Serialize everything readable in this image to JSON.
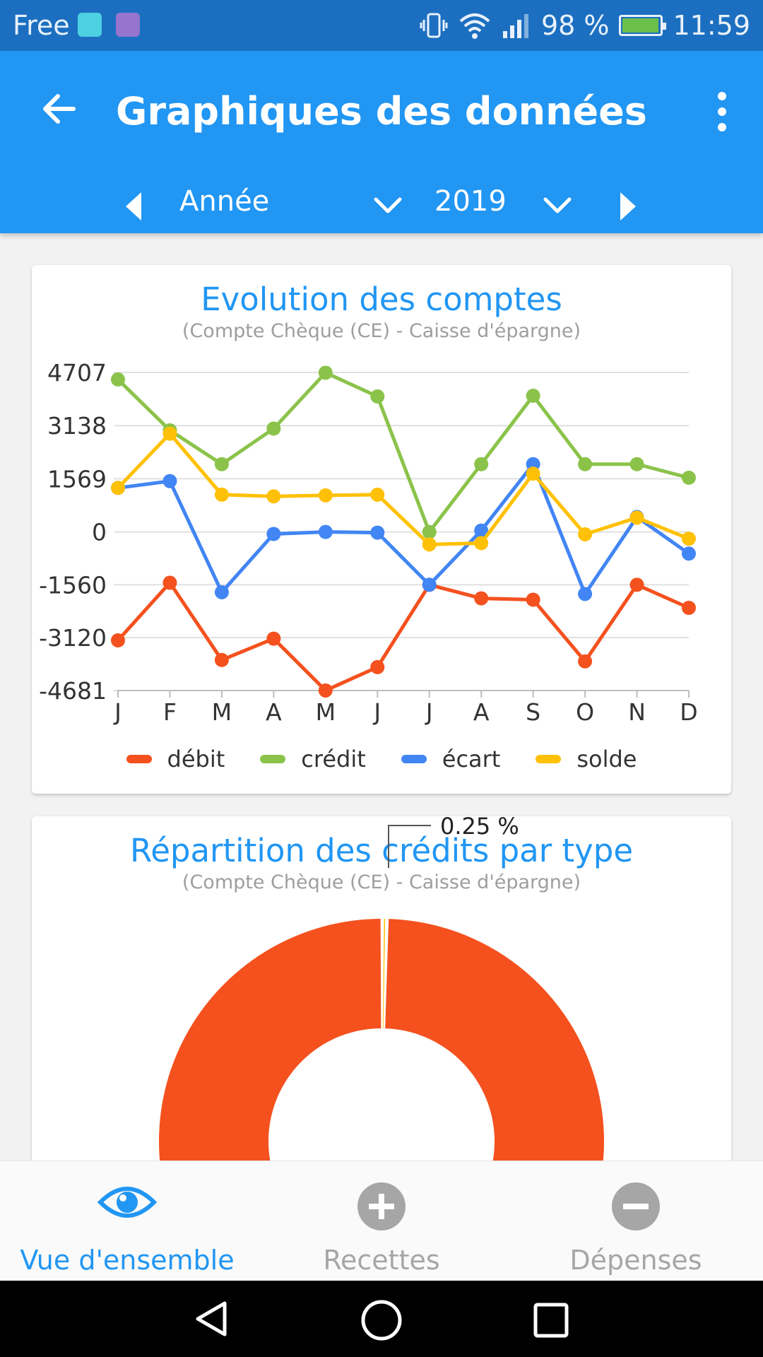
{
  "status_bar": {
    "carrier": "Free",
    "battery": "98 %",
    "battery_level": 0.98,
    "time": "11:59",
    "icons": [
      "android-icon",
      "gallery-icon",
      "vibrate-icon",
      "wifi-icon",
      "signal-icon",
      "battery-charging-icon"
    ]
  },
  "app_bar": {
    "title": "Graphiques des données",
    "back_icon": "back-arrow-icon",
    "menu_icon": "more-vert-icon"
  },
  "period": {
    "mode": "Année",
    "year": "2019"
  },
  "colors": {
    "primary": "#2196f3",
    "status_bar": "#1c6fc0",
    "debit": "#f4511e",
    "credit": "#8bc34a",
    "ecart": "#4285f4",
    "solde": "#ffc107"
  },
  "evolution_card": {
    "title": "Evolution des comptes",
    "subtitle": "(Compte Chèque (CE) - Caisse d'épargne)"
  },
  "repartition_card": {
    "title": "Répartition des crédits par type",
    "subtitle": "(Compte Chèque (CE) - Caisse d'épargne)"
  },
  "chart_data": [
    {
      "type": "line",
      "title": "Evolution des comptes",
      "subtitle": "(Compte Chèque (CE) - Caisse d'épargne)",
      "x": [
        "J",
        "F",
        "M",
        "A",
        "M",
        "J",
        "J",
        "A",
        "S",
        "O",
        "N",
        "D"
      ],
      "y_ticks": [
        4707,
        3138,
        1569,
        0,
        -1560,
        -3120,
        -4681
      ],
      "ylim": [
        -4681,
        4707
      ],
      "grid": true,
      "legend_position": "bottom",
      "series": [
        {
          "name": "débit",
          "color": "#f4511e",
          "values": [
            -3200,
            -1500,
            -3780,
            -3150,
            -4680,
            -3990,
            -1560,
            -1960,
            -2000,
            -3820,
            -1560,
            -2240
          ]
        },
        {
          "name": "crédit",
          "color": "#8bc34a",
          "values": [
            4500,
            3000,
            2000,
            3050,
            4700,
            4000,
            0,
            2000,
            4020,
            2000,
            2000,
            1600
          ]
        },
        {
          "name": "écart",
          "color": "#4285f4",
          "values": [
            1300,
            1500,
            -1780,
            -60,
            0,
            -20,
            -1560,
            40,
            2000,
            -1830,
            440,
            -640
          ]
        },
        {
          "name": "solde",
          "color": "#ffc107",
          "values": [
            1300,
            2900,
            1100,
            1050,
            1080,
            1100,
            -370,
            -330,
            1720,
            -70,
            420,
            -200
          ]
        }
      ]
    },
    {
      "type": "pie",
      "title": "Répartition des crédits par type",
      "subtitle": "(Compte Chèque (CE) - Caisse d'épargne)",
      "annotation": "0.25 %",
      "slices": [
        {
          "color": "#f4511e",
          "value": 99.75
        },
        {
          "color": "#ffc107",
          "value": 0.25
        }
      ]
    }
  ],
  "bottom_nav": {
    "items": [
      {
        "label": "Vue d'ensemble",
        "icon": "eye-icon",
        "active": true
      },
      {
        "label": "Recettes",
        "icon": "plus-circle-icon",
        "active": false
      },
      {
        "label": "Dépenses",
        "icon": "minus-circle-icon",
        "active": false
      }
    ]
  },
  "system_nav": {
    "icons": [
      "nav-back-icon",
      "nav-home-icon",
      "nav-recents-icon"
    ]
  }
}
